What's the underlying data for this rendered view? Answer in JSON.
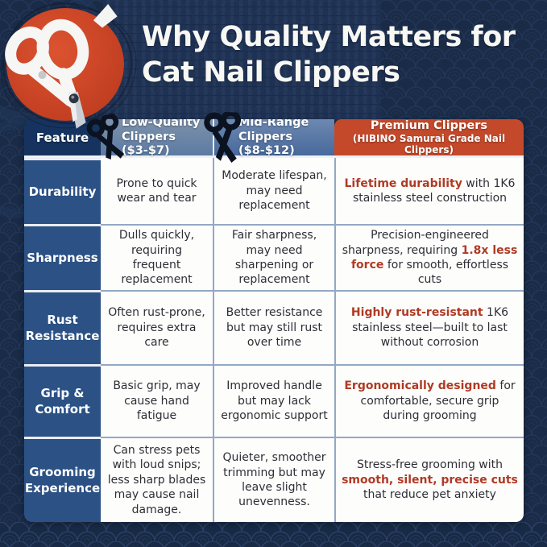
{
  "title": {
    "line1": "Why Quality Matters for",
    "line2": "Cat Nail Clippers"
  },
  "table": {
    "feature_header": "Feature",
    "columns": {
      "low": {
        "label": "Low-Quality Clippers ($3-$7)",
        "icon": "black-clipper-icon"
      },
      "mid": {
        "label": "Mid-Range Clippers ($8-$12)",
        "icon": "black-clipper-icon"
      },
      "premium": {
        "label_line1": "Premium Clippers",
        "label_line2": "(HIBINO Samurai Grade Nail Clippers)"
      }
    },
    "rows": [
      {
        "feature": "Durability",
        "low": "Prone to quick wear and tear",
        "mid": "Moderate lifespan, may need replacement",
        "premium": [
          {
            "t": "Lifetime durability",
            "h": true
          },
          {
            "t": " with 1K6 stainless steel construction",
            "h": false
          }
        ]
      },
      {
        "feature": "Sharpness",
        "low": "Dulls quickly, requiring frequent replacement",
        "mid": "Fair sharpness, may need sharpening or replacement",
        "premium": [
          {
            "t": "Precision-engineered sharpness, requiring ",
            "h": false
          },
          {
            "t": "1.8x less force",
            "h": true
          },
          {
            "t": " for smooth, effortless cuts",
            "h": false
          }
        ]
      },
      {
        "feature": "Rust Resistance",
        "low": "Often rust-prone, requires extra care",
        "mid": "Better resistance but may still rust over time",
        "premium": [
          {
            "t": "Highly rust-resistant",
            "h": true
          },
          {
            "t": " 1K6 stainless steel—built to last without corrosion",
            "h": false
          }
        ]
      },
      {
        "feature": "Grip & Comfort",
        "low": "Basic grip, may cause hand fatigue",
        "mid": "Improved handle but may lack ergonomic support",
        "premium": [
          {
            "t": "Ergonomically designed",
            "h": true
          },
          {
            "t": " for comfortable, secure grip during grooming",
            "h": false
          }
        ]
      },
      {
        "feature": "Grooming Experience",
        "low": "Can stress pets with loud snips; less sharp blades may cause nail damage.",
        "mid": "Quieter, smoother trimming but may leave slight unevenness.",
        "premium": [
          {
            "t": "Stress-free grooming with ",
            "h": false
          },
          {
            "t": "smooth, silent, precise cuts",
            "h": true
          },
          {
            "t": " that reduce pet anxiety",
            "h": false
          }
        ]
      }
    ]
  },
  "icons": {
    "badge": "white-cat-nail-clipper-icon",
    "header_low": "black-clipper-icon",
    "header_mid": "black-clipper-icon"
  },
  "colors": {
    "background_navy": "#1b2c49",
    "feature_header_navy": "#15335e",
    "feature_cell_blue": "#2b5185",
    "low_header_blue": "#6d87a7",
    "mid_header_blue": "#57779f",
    "premium_red": "#c4492b",
    "highlight_text_red": "#b03a24",
    "badge_red": "#c8431f",
    "cell_white": "#fdfdfc"
  }
}
